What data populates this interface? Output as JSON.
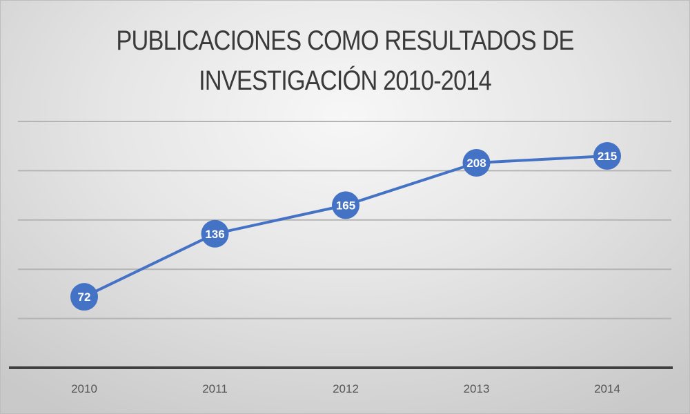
{
  "title_line1": "PUBLICACIONES COMO RESULTADOS DE",
  "title_line2": "INVESTIGACIÓN 2010-2014",
  "colors": {
    "line": "#4472c4",
    "marker": "#4472c4",
    "grid": "#b4b4b4",
    "axis": "#404040",
    "text": "#3a3a3a"
  },
  "chart_data": {
    "type": "line",
    "title": "PUBLICACIONES COMO RESULTADOS DE INVESTIGACIÓN 2010-2014",
    "categories": [
      "2010",
      "2011",
      "2012",
      "2013",
      "2014"
    ],
    "values": [
      72,
      136,
      165,
      208,
      215
    ],
    "data_labels": [
      "72",
      "136",
      "165",
      "208",
      "215"
    ],
    "xlabel": "",
    "ylabel": "",
    "ylim": [
      0,
      250
    ],
    "grid": true,
    "y_axis_labels_shown": false,
    "legend": "none"
  }
}
